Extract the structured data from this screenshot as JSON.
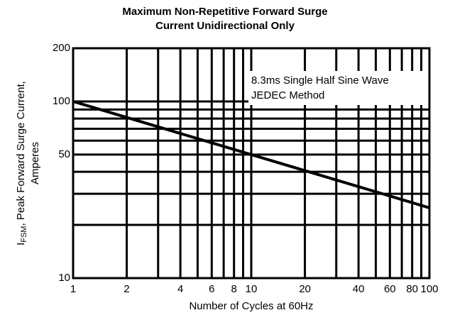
{
  "chart_data": {
    "type": "line",
    "title": [
      "Maximum Non-Repetitive Forward Surge",
      "Current Unidirectional Only"
    ],
    "x_label": "Number of Cycles at 60Hz",
    "y_label": {
      "main": "I",
      "sub": "FSM",
      "rest": ",  Peak Forward Surge Current,",
      "line2": "Amperes"
    },
    "annotation": [
      "8.3ms Single Half Sine Wave",
      "JEDEC Method"
    ],
    "x": [
      1,
      10,
      100
    ],
    "series": [
      {
        "name": "IFSM",
        "color": "#000000",
        "values": [
          100,
          50,
          25
        ]
      }
    ],
    "log_x": true,
    "log_y": true,
    "grid": true,
    "xlim": [
      1,
      100
    ],
    "xticks": [
      1,
      2,
      4,
      6,
      8,
      10,
      20,
      40,
      60,
      80,
      100
    ],
    "xminor": [
      3,
      5,
      7,
      9,
      30,
      50,
      70,
      90
    ],
    "ylim": [
      10,
      200
    ],
    "yticks": [
      10,
      50,
      100,
      200
    ],
    "yminor": [
      20,
      30,
      40,
      60,
      70,
      80,
      90
    ]
  }
}
